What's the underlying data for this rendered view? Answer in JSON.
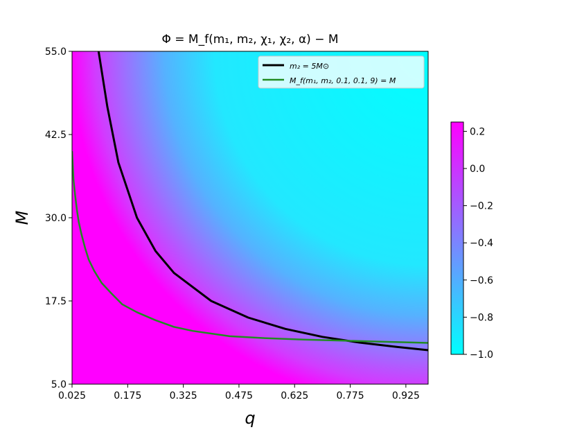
{
  "chart_data": {
    "type": "heatmap",
    "title": "Φ = M_f(m₁, m₂, χ₁, χ₂, α) − M",
    "xlabel": "q",
    "ylabel": "M",
    "xlim": [
      0.025,
      0.985
    ],
    "ylim": [
      5.0,
      55.0
    ],
    "xticks": [
      "0.025",
      "0.175",
      "0.325",
      "0.475",
      "0.625",
      "0.775",
      "0.925"
    ],
    "yticks": [
      "5.0",
      "17.5",
      "30.0",
      "42.5",
      "55.0"
    ],
    "colorbar": {
      "range": [
        -1.0,
        0.25
      ],
      "ticks": [
        "0.2",
        "0.0",
        "−0.2",
        "−0.4",
        "−0.6",
        "−0.8",
        "−1.0"
      ],
      "low_color": "#00ffff",
      "high_color": "#ff00ff"
    },
    "series": [
      {
        "name": "m₂ = 5M⊙",
        "color": "#000000",
        "points": [
          [
            0.0966,
            55.0
          ],
          [
            0.12,
            46.7
          ],
          [
            0.15,
            38.3
          ],
          [
            0.2,
            30.0
          ],
          [
            0.25,
            25.0
          ],
          [
            0.3,
            21.7
          ],
          [
            0.4,
            17.5
          ],
          [
            0.5,
            15.0
          ],
          [
            0.6,
            13.3
          ],
          [
            0.7,
            12.1
          ],
          [
            0.8,
            11.25
          ],
          [
            0.9,
            10.6
          ],
          [
            0.985,
            10.1
          ]
        ]
      },
      {
        "name": "M_f(m₁, m₂, 0.1, 0.1, 9) = M",
        "color": "#228b22",
        "points": [
          [
            0.025,
            40.0
          ],
          [
            0.027,
            37.8
          ],
          [
            0.029,
            35.7
          ],
          [
            0.033,
            33.5
          ],
          [
            0.038,
            31.2
          ],
          [
            0.043,
            29.4
          ],
          [
            0.05,
            27.6
          ],
          [
            0.06,
            25.5
          ],
          [
            0.07,
            23.7
          ],
          [
            0.085,
            22.0
          ],
          [
            0.105,
            20.2
          ],
          [
            0.13,
            18.7
          ],
          [
            0.16,
            17.0
          ],
          [
            0.2,
            15.8
          ],
          [
            0.25,
            14.6
          ],
          [
            0.3,
            13.6
          ],
          [
            0.35,
            13.0
          ],
          [
            0.45,
            12.2
          ],
          [
            0.55,
            11.9
          ],
          [
            0.65,
            11.7
          ],
          [
            0.75,
            11.55
          ],
          [
            0.85,
            11.4
          ],
          [
            0.95,
            11.25
          ],
          [
            0.985,
            11.2
          ]
        ]
      }
    ],
    "legend": "top-right"
  }
}
